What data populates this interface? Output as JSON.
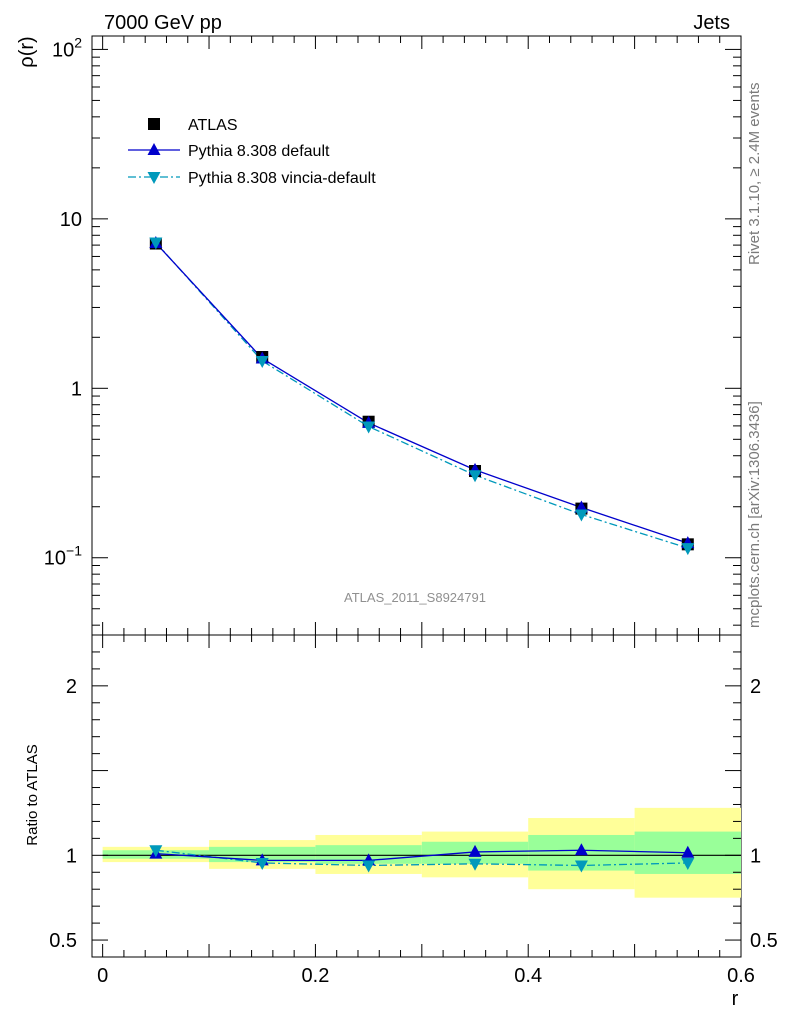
{
  "header": {
    "left": "7000 GeV pp",
    "right": "Jets"
  },
  "side_text": {
    "top": "Rivet 3.1.10, ≥ 2.4M events",
    "bottom": "mcplots.cern.ch [arXiv:1306.3436]"
  },
  "analysis_label": "ATLAS_2011_S8924791",
  "colors": {
    "data": "#000000",
    "default": "#0000cc",
    "vincia": "#0099bb",
    "band_outer": "#ffff99",
    "band_inner": "#99ff99"
  },
  "chart_data": [
    {
      "type": "line",
      "ylabel": "ρ(r)",
      "yscale": "log",
      "ylim": [
        0.035,
        120
      ],
      "xlim": [
        -0.01,
        0.6
      ],
      "ytick_labels": [
        {
          "value": 100,
          "base": "10",
          "exp": "2"
        },
        {
          "value": 10,
          "base": "10",
          "exp": ""
        },
        {
          "value": 1,
          "base": "1",
          "exp": ""
        },
        {
          "value": 0.1,
          "base": "10",
          "exp": "−1"
        }
      ],
      "x": [
        0.05,
        0.15,
        0.25,
        0.35,
        0.45,
        0.55
      ],
      "series": [
        {
          "name": "ATLAS",
          "marker": "square",
          "values": [
            7.15,
            1.53,
            0.635,
            0.325,
            0.195,
            0.12
          ]
        },
        {
          "name": "Pythia 8.308 default",
          "marker": "triangle-up",
          "line": "solid",
          "values": [
            7.2,
            1.5,
            0.625,
            0.33,
            0.198,
            0.122
          ]
        },
        {
          "name": "Pythia 8.308 vincia-default",
          "marker": "triangle-down",
          "line": "dash-dot",
          "values": [
            7.25,
            1.45,
            0.595,
            0.307,
            0.18,
            0.114
          ]
        }
      ],
      "legend_position": "top-left"
    },
    {
      "type": "line",
      "ylabel": "Ratio to ATLAS",
      "xlabel": "r",
      "xlim": [
        -0.01,
        0.6
      ],
      "ylim": [
        0.4,
        2.3
      ],
      "ytick_labels": [
        {
          "value": 0.5,
          "label": "0.5"
        },
        {
          "value": 1,
          "label": "1"
        },
        {
          "value": 2,
          "label": "2"
        }
      ],
      "xtick_labels": [
        {
          "value": 0,
          "label": "0"
        },
        {
          "value": 0.2,
          "label": "0.2"
        },
        {
          "value": 0.4,
          "label": "0.4"
        },
        {
          "value": 0.6,
          "label": "0.6"
        }
      ],
      "bands": {
        "bins": [
          [
            0.0,
            0.1
          ],
          [
            0.1,
            0.2
          ],
          [
            0.2,
            0.3
          ],
          [
            0.3,
            0.4
          ],
          [
            0.4,
            0.5
          ],
          [
            0.5,
            0.6
          ]
        ],
        "outer": [
          [
            0.96,
            1.05
          ],
          [
            0.92,
            1.09
          ],
          [
            0.89,
            1.12
          ],
          [
            0.87,
            1.14
          ],
          [
            0.8,
            1.22
          ],
          [
            0.75,
            1.28
          ]
        ],
        "inner": [
          [
            0.98,
            1.03
          ],
          [
            0.96,
            1.05
          ],
          [
            0.95,
            1.06
          ],
          [
            0.95,
            1.08
          ],
          [
            0.91,
            1.12
          ],
          [
            0.89,
            1.14
          ]
        ]
      },
      "x": [
        0.05,
        0.15,
        0.25,
        0.35,
        0.45,
        0.55
      ],
      "series": [
        {
          "name": "Pythia 8.308 default",
          "values": [
            1.01,
            0.97,
            0.97,
            1.02,
            1.03,
            1.015
          ]
        },
        {
          "name": "Pythia 8.308 vincia-default",
          "values": [
            1.03,
            0.955,
            0.94,
            0.95,
            0.94,
            0.955
          ]
        }
      ]
    }
  ]
}
